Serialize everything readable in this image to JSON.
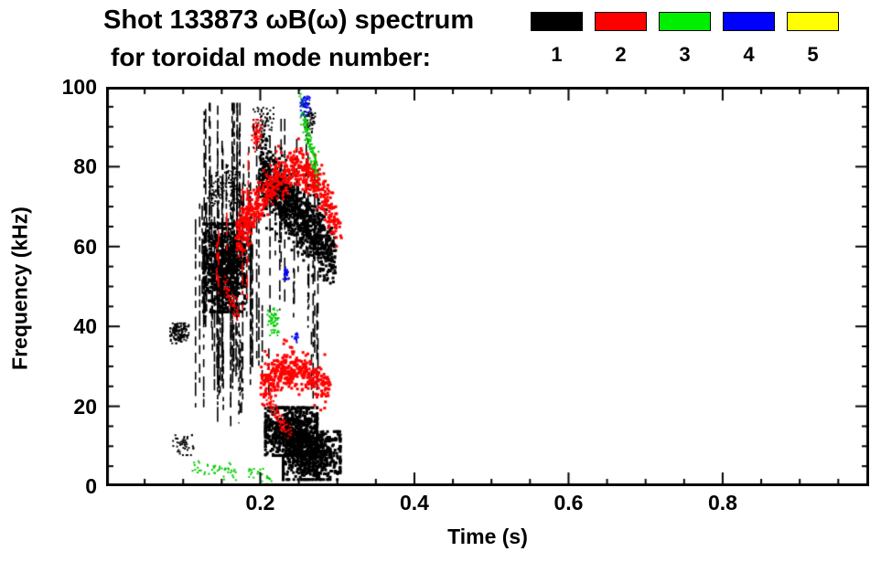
{
  "chart_data": {
    "type": "scatter",
    "title": "Shot 133873 ωB(ω) spectrum",
    "subtitle": "for toroidal mode number:",
    "xlabel": "Time (s)",
    "ylabel": "Frequency (kHz)",
    "xlim": [
      0.0,
      0.99
    ],
    "ylim": [
      0,
      100
    ],
    "xticks": [
      {
        "value": 0.2,
        "label": "0.2"
      },
      {
        "value": 0.4,
        "label": "0.4"
      },
      {
        "value": 0.6,
        "label": "0.6"
      },
      {
        "value": 0.8,
        "label": "0.8"
      }
    ],
    "yticks": [
      {
        "value": 0,
        "label": "0"
      },
      {
        "value": 20,
        "label": "20"
      },
      {
        "value": 40,
        "label": "40"
      },
      {
        "value": 60,
        "label": "60"
      },
      {
        "value": 80,
        "label": "80"
      },
      {
        "value": 100,
        "label": "100"
      }
    ],
    "x_minor_step": 0.05,
    "y_minor_step": 5,
    "grid": false,
    "legend_position": "top-right",
    "legend": [
      {
        "label": "1",
        "color": "#000000"
      },
      {
        "label": "2",
        "color": "#ff0000"
      },
      {
        "label": "3",
        "color": "#00ee00"
      },
      {
        "label": "4",
        "color": "#0000ff"
      },
      {
        "label": "5",
        "color": "#ffff00"
      }
    ],
    "units": {
      "t": "s",
      "f": "kHz"
    },
    "series": [
      {
        "name": "toroidal mode n=1",
        "color": "#000000",
        "clusters": [
          {
            "shape": "blob",
            "t": [
              0.082,
              0.106
            ],
            "f": [
              36,
              41
            ],
            "n": 130,
            "size": 2
          },
          {
            "shape": "blob",
            "t": [
              0.085,
              0.112
            ],
            "f": [
              8,
              13
            ],
            "n": 45,
            "size": 2
          },
          {
            "shape": "vstreaks",
            "t": [
              0.115,
              0.192
            ],
            "f": [
              15,
              96
            ],
            "count": 60
          },
          {
            "shape": "blob",
            "t": [
              0.125,
              0.178
            ],
            "f": [
              44,
              66
            ],
            "n": 800,
            "size": 3
          },
          {
            "shape": "band",
            "path": [
              [
                0.132,
                73
              ],
              [
                0.158,
                76
              ],
              [
                0.178,
                71
              ]
            ],
            "spread": 2.5,
            "n": 140,
            "size": 2
          },
          {
            "shape": "band",
            "path": [
              [
                0.198,
                80
              ],
              [
                0.228,
                72
              ],
              [
                0.258,
                66
              ],
              [
                0.295,
                57
              ]
            ],
            "spread": 4,
            "n": 1000,
            "size": 3
          },
          {
            "shape": "blob",
            "t": [
              0.205,
              0.272
            ],
            "f": [
              8,
              20
            ],
            "n": 700,
            "size": 3
          },
          {
            "shape": "blob",
            "t": [
              0.228,
              0.302
            ],
            "f": [
              2,
              14
            ],
            "n": 700,
            "size": 3
          },
          {
            "shape": "vstreaks",
            "t": [
              0.192,
              0.275
            ],
            "f": [
              20,
              92
            ],
            "count": 22
          },
          {
            "shape": "blob",
            "t": [
              0.19,
              0.216
            ],
            "f": [
              85,
              95
            ],
            "n": 90,
            "size": 2
          },
          {
            "shape": "blob",
            "t": [
              0.256,
              0.27
            ],
            "f": [
              88,
              96
            ],
            "n": 55,
            "size": 2
          }
        ]
      },
      {
        "name": "toroidal mode n=2",
        "color": "#ff0000",
        "clusters": [
          {
            "shape": "band",
            "path": [
              [
                0.168,
                63
              ],
              [
                0.192,
                70
              ],
              [
                0.218,
                77
              ],
              [
                0.245,
                81
              ],
              [
                0.272,
                77
              ],
              [
                0.302,
                64
              ]
            ],
            "spread": 2.8,
            "n": 600,
            "size": 3
          },
          {
            "shape": "band",
            "path": [
              [
                0.2,
                26
              ],
              [
                0.228,
                30
              ],
              [
                0.256,
                29
              ],
              [
                0.288,
                24
              ]
            ],
            "spread": 2.4,
            "n": 380,
            "size": 3
          },
          {
            "shape": "blob",
            "t": [
              0.188,
              0.2
            ],
            "f": [
              84,
              92
            ],
            "n": 60,
            "size": 2
          },
          {
            "shape": "band",
            "path": [
              [
                0.152,
                51
              ],
              [
                0.172,
                42
              ]
            ],
            "spread": 1.2,
            "n": 60,
            "size": 2
          },
          {
            "shape": "band",
            "path": [
              [
                0.208,
                22
              ],
              [
                0.238,
                13
              ]
            ],
            "spread": 1.2,
            "n": 80,
            "size": 2
          },
          {
            "shape": "vstreaks",
            "t": [
              0.135,
              0.185
            ],
            "f": [
              40,
              85
            ],
            "count": 7
          }
        ]
      },
      {
        "name": "toroidal mode n=3",
        "color": "#00cc00",
        "clusters": [
          {
            "shape": "band",
            "path": [
              [
                0.251,
                97
              ],
              [
                0.258,
                90
              ],
              [
                0.266,
                84
              ],
              [
                0.273,
                79
              ]
            ],
            "spread": 1.8,
            "n": 130,
            "size": 2
          },
          {
            "shape": "blob",
            "t": [
              0.208,
              0.223
            ],
            "f": [
              38,
              45
            ],
            "n": 55,
            "size": 2
          },
          {
            "shape": "band",
            "path": [
              [
                0.112,
                5
              ],
              [
                0.168,
                4
              ]
            ],
            "spread": 1.0,
            "n": 45,
            "size": 2
          },
          {
            "shape": "band",
            "path": [
              [
                0.185,
                4
              ],
              [
                0.212,
                2.5
              ]
            ],
            "spread": 0.8,
            "n": 25,
            "size": 2
          }
        ]
      },
      {
        "name": "toroidal mode n=4",
        "color": "#0000ee",
        "clusters": [
          {
            "shape": "blob",
            "t": [
              0.251,
              0.263
            ],
            "f": [
              93,
              98
            ],
            "n": 45,
            "size": 2
          },
          {
            "shape": "blob",
            "t": [
              0.228,
              0.236
            ],
            "f": [
              52,
              55
            ],
            "n": 28,
            "size": 2
          },
          {
            "shape": "blob",
            "t": [
              0.24,
              0.249
            ],
            "f": [
              36,
              39
            ],
            "n": 14,
            "size": 2
          }
        ]
      },
      {
        "name": "toroidal mode n=5",
        "color": "#ffff00",
        "clusters": []
      }
    ]
  }
}
